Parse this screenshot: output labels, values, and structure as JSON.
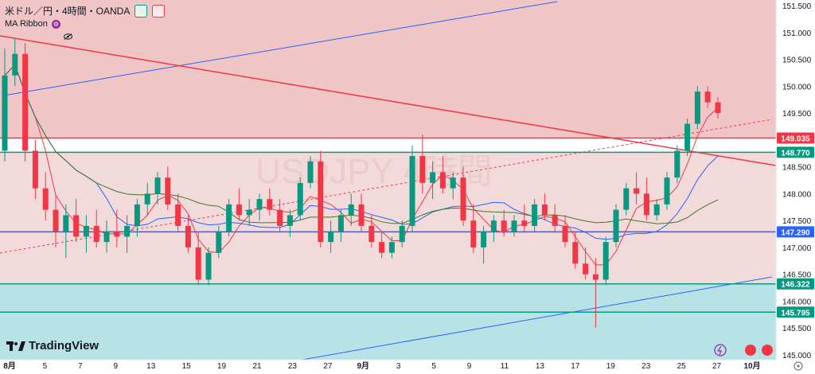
{
  "header": {
    "symbol_title": "米ドル／円・4時間・OANDA",
    "indicator_name": "MA Ribbon",
    "watermark": "USDJPY 4時間"
  },
  "branding": {
    "logo_text": "TradingView"
  },
  "price_axis": {
    "labels": [
      "151.500",
      "151.000",
      "150.500",
      "150.000",
      "149.500",
      "149.000",
      "148.500",
      "148.000",
      "147.500",
      "147.000",
      "146.500",
      "146.000",
      "145.500",
      "145.000"
    ]
  },
  "price_tags": [
    {
      "value": "149.035",
      "color": "#f23645"
    },
    {
      "value": "148.770",
      "color": "#089981"
    },
    {
      "value": "147.290",
      "color": "#2962ff"
    },
    {
      "value": "146.322",
      "color": "#089981"
    },
    {
      "value": "145.795",
      "color": "#089981"
    }
  ],
  "time_axis": {
    "labels": [
      "8月",
      "5",
      "7",
      "9",
      "13",
      "15",
      "19",
      "21",
      "23",
      "27",
      "9月",
      "3",
      "5",
      "9",
      "11",
      "13",
      "17",
      "19",
      "23",
      "25",
      "27",
      "10月"
    ]
  },
  "colors": {
    "up": "#089981",
    "down": "#f23645",
    "hline_red": "#f23645",
    "hline_green": "#089981",
    "hline_blue": "#2962ff",
    "zone_red": "#f0c5c5",
    "zone_teal": "#b8e3e6",
    "ma_fast": "#f23645",
    "ma_mid": "#2962ff",
    "ma_slow": "#3a7a2a"
  },
  "chart_data": {
    "type": "candlestick",
    "ylim": [
      145.0,
      151.5
    ],
    "hlines": [
      149.035,
      148.77,
      147.29,
      146.322,
      145.795
    ],
    "ohlc": [
      [
        148.8,
        150.7,
        148.6,
        150.2
      ],
      [
        150.2,
        150.9,
        150.0,
        150.6
      ],
      [
        150.6,
        150.8,
        148.6,
        148.8
      ],
      [
        148.8,
        149.0,
        147.9,
        148.1
      ],
      [
        148.1,
        148.4,
        147.5,
        147.7
      ],
      [
        147.7,
        148.0,
        147.0,
        147.3
      ],
      [
        147.3,
        147.8,
        146.8,
        147.6
      ],
      [
        147.6,
        147.9,
        147.1,
        147.2
      ],
      [
        147.2,
        147.6,
        146.9,
        147.4
      ],
      [
        147.4,
        147.7,
        147.0,
        147.1
      ],
      [
        147.1,
        147.5,
        146.9,
        147.3
      ],
      [
        147.3,
        147.7,
        147.0,
        147.2
      ],
      [
        147.2,
        147.6,
        146.9,
        147.4
      ],
      [
        147.4,
        147.9,
        147.2,
        147.8
      ],
      [
        147.8,
        148.2,
        147.6,
        148.0
      ],
      [
        148.0,
        148.4,
        147.8,
        148.3
      ],
      [
        148.3,
        148.5,
        147.7,
        147.8
      ],
      [
        147.8,
        148.0,
        147.3,
        147.4
      ],
      [
        147.4,
        147.6,
        146.9,
        147.0
      ],
      [
        147.0,
        147.3,
        146.3,
        146.4
      ],
      [
        146.4,
        147.0,
        146.3,
        146.9
      ],
      [
        146.9,
        147.4,
        146.8,
        147.3
      ],
      [
        147.3,
        147.9,
        147.2,
        147.8
      ],
      [
        147.8,
        148.1,
        147.5,
        147.6
      ],
      [
        147.6,
        147.9,
        147.4,
        147.7
      ],
      [
        147.7,
        148.0,
        147.5,
        147.9
      ],
      [
        147.9,
        148.1,
        147.6,
        147.7
      ],
      [
        147.7,
        147.9,
        147.3,
        147.4
      ],
      [
        147.4,
        147.7,
        147.2,
        147.6
      ],
      [
        147.6,
        148.3,
        147.5,
        148.2
      ],
      [
        148.2,
        148.7,
        148.1,
        148.6
      ],
      [
        148.6,
        148.8,
        147.0,
        147.1
      ],
      [
        147.1,
        147.5,
        146.9,
        147.3
      ],
      [
        147.3,
        147.7,
        147.1,
        147.6
      ],
      [
        147.6,
        148.0,
        147.4,
        147.8
      ],
      [
        147.8,
        148.0,
        147.3,
        147.4
      ],
      [
        147.4,
        147.6,
        147.0,
        147.1
      ],
      [
        147.1,
        147.3,
        146.8,
        146.9
      ],
      [
        146.9,
        147.2,
        146.8,
        147.1
      ],
      [
        147.1,
        147.5,
        147.0,
        147.4
      ],
      [
        147.4,
        148.9,
        147.3,
        148.7
      ],
      [
        148.7,
        149.1,
        148.0,
        148.2
      ],
      [
        148.2,
        148.6,
        147.9,
        148.4
      ],
      [
        148.4,
        148.7,
        148.0,
        148.1
      ],
      [
        148.1,
        148.4,
        147.9,
        148.3
      ],
      [
        148.3,
        148.5,
        147.4,
        147.5
      ],
      [
        147.5,
        147.8,
        146.9,
        147.0
      ],
      [
        147.0,
        147.4,
        146.7,
        147.3
      ],
      [
        147.3,
        147.6,
        147.1,
        147.5
      ],
      [
        147.5,
        147.7,
        147.2,
        147.3
      ],
      [
        147.3,
        147.6,
        147.2,
        147.5
      ],
      [
        147.5,
        147.8,
        147.3,
        147.4
      ],
      [
        147.4,
        147.9,
        147.3,
        147.8
      ],
      [
        147.8,
        148.0,
        147.5,
        147.6
      ],
      [
        147.6,
        147.8,
        147.3,
        147.4
      ],
      [
        147.4,
        147.6,
        147.0,
        147.1
      ],
      [
        147.1,
        147.3,
        146.6,
        146.7
      ],
      [
        146.7,
        147.0,
        146.4,
        146.5
      ],
      [
        146.5,
        146.8,
        145.5,
        146.4
      ],
      [
        146.4,
        147.2,
        146.3,
        147.1
      ],
      [
        147.1,
        147.8,
        147.0,
        147.7
      ],
      [
        147.7,
        148.2,
        147.6,
        148.1
      ],
      [
        148.1,
        148.4,
        147.8,
        148.0
      ],
      [
        148.0,
        148.3,
        147.5,
        147.6
      ],
      [
        147.6,
        147.9,
        147.5,
        147.8
      ],
      [
        147.8,
        148.4,
        147.7,
        148.3
      ],
      [
        148.3,
        148.9,
        148.2,
        148.8
      ],
      [
        148.8,
        149.4,
        148.7,
        149.3
      ],
      [
        149.3,
        150.0,
        149.2,
        149.9
      ],
      [
        149.9,
        150.0,
        149.6,
        149.7
      ],
      [
        149.7,
        149.8,
        149.4,
        149.5
      ]
    ]
  }
}
